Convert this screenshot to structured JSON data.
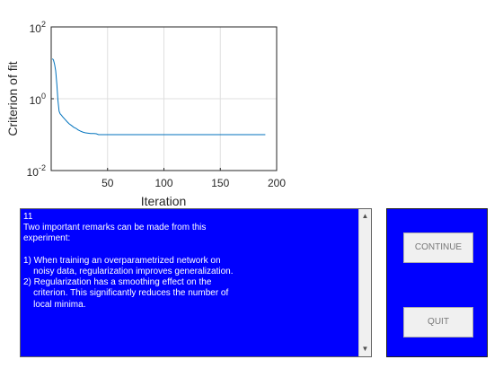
{
  "chart_data": {
    "type": "line",
    "ylabel": "Criterion of fit",
    "xlabel": "Iteration",
    "yscale": "log",
    "xlim": [
      0,
      200
    ],
    "ylim": [
      0.01,
      100
    ],
    "grid": true,
    "x_ticks": [
      {
        "value": 0,
        "label": ""
      },
      {
        "value": 50,
        "label": "50"
      },
      {
        "value": 100,
        "label": "100"
      },
      {
        "value": 150,
        "label": "150"
      },
      {
        "value": 200,
        "label": "200"
      }
    ],
    "y_ticks": [
      {
        "value": 0.01,
        "base": "10",
        "exp": "-2"
      },
      {
        "value": 1,
        "base": "10",
        "exp": "0"
      },
      {
        "value": 100,
        "base": "10",
        "exp": "2"
      }
    ],
    "color": "#0072bd",
    "series": [
      {
        "x": [
          1,
          2,
          3,
          4,
          5,
          6,
          7,
          8,
          9,
          10,
          12,
          14,
          16,
          18,
          20,
          22,
          24,
          26,
          28,
          30,
          32,
          35,
          38,
          40,
          42,
          45,
          50,
          60,
          80,
          100,
          120,
          140,
          160,
          180,
          190
        ],
        "y": [
          13,
          12,
          9,
          6,
          2.5,
          0.9,
          0.45,
          0.38,
          0.35,
          0.32,
          0.27,
          0.23,
          0.2,
          0.18,
          0.16,
          0.15,
          0.135,
          0.125,
          0.118,
          0.113,
          0.111,
          0.108,
          0.107,
          0.106,
          0.1,
          0.1,
          0.1,
          0.1,
          0.1,
          0.1,
          0.1,
          0.1,
          0.1,
          0.1,
          0.1
        ]
      }
    ]
  },
  "message": {
    "text": "11\nTwo important remarks can be made from this\nexperiment:\n\n1) When training an overparametrized network on\n    noisy data, regularization improves generalization.\n2) Regularization has a smoothing effect on the\n    criterion. This significantly reduces the number of\n    local minima."
  },
  "buttons": {
    "continue_label": "CONTINUE",
    "quit_label": "QUIT"
  },
  "colors": {
    "panel": "#0000ff",
    "plot_line": "#0072bd"
  }
}
